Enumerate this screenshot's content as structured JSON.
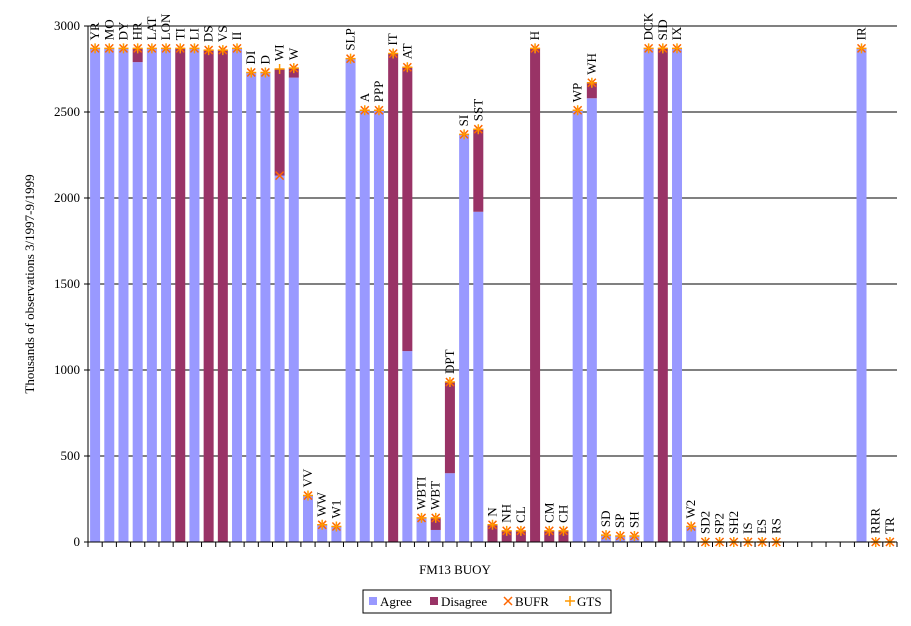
{
  "chart_data": {
    "type": "stacked_bar",
    "y_axis_label": "Thousands of observations 3/1997-9/1999",
    "x_axis_label": "FM13 BUOY",
    "categories": [
      "YR",
      "MO",
      "DY",
      "HR",
      "LAT",
      "LON",
      "TI",
      "LI",
      "DS",
      "VS",
      "II",
      "DI",
      "D",
      "WI",
      "W",
      "VV",
      "WW",
      "W1",
      "SLP",
      "A",
      "PPP",
      "IT",
      "AT",
      "WBTI",
      "WBT",
      "DPT",
      "SI",
      "SST",
      "N",
      "NH",
      "CL",
      "H",
      "CM",
      "CH",
      "WP",
      "WH",
      "SD",
      "SP",
      "SH",
      "DCK",
      "SID",
      "IX",
      "W2",
      "SD2",
      "SP2",
      "SH2",
      "IS",
      "ES",
      "RS",
      null,
      null,
      null,
      null,
      null,
      "IR",
      "RRR",
      "TR"
    ],
    "series": [
      {
        "name": "Agree",
        "color": "#9999ff",
        "kind": "bar",
        "values": [
          2870,
          2870,
          2870,
          2790,
          2870,
          2870,
          0,
          2870,
          0,
          0,
          2870,
          2730,
          2730,
          2130,
          2700,
          270,
          100,
          90,
          2810,
          2510,
          2510,
          0,
          1110,
          140,
          70,
          400,
          2370,
          1920,
          0,
          0,
          0,
          0,
          0,
          0,
          2510,
          2580,
          40,
          35,
          35,
          2870,
          0,
          2870,
          90,
          0,
          0,
          0,
          0,
          0,
          0,
          null,
          null,
          null,
          null,
          null,
          2870,
          0,
          0
        ]
      },
      {
        "name": "Disagree",
        "color": "#993366",
        "kind": "bar",
        "values": [
          0,
          0,
          0,
          80,
          0,
          0,
          2870,
          0,
          2860,
          2860,
          0,
          0,
          0,
          620,
          55,
          0,
          0,
          0,
          0,
          0,
          0,
          2840,
          1650,
          0,
          70,
          530,
          0,
          480,
          100,
          65,
          65,
          2870,
          65,
          65,
          0,
          90,
          0,
          0,
          0,
          0,
          2870,
          0,
          0,
          0,
          0,
          0,
          0,
          0,
          0,
          null,
          null,
          null,
          null,
          null,
          0,
          0,
          0
        ]
      },
      {
        "name": "BUFR",
        "color": "#ff6600",
        "kind": "x-marker",
        "values": [
          2870,
          2870,
          2870,
          2870,
          2870,
          2870,
          2870,
          2870,
          2860,
          2860,
          2870,
          2730,
          2730,
          2130,
          2755,
          270,
          100,
          90,
          2810,
          2510,
          2510,
          2840,
          2760,
          140,
          140,
          930,
          2370,
          2400,
          100,
          65,
          65,
          2870,
          65,
          65,
          2510,
          2670,
          40,
          35,
          35,
          2870,
          2870,
          2870,
          90,
          0,
          0,
          0,
          0,
          0,
          0,
          null,
          null,
          null,
          null,
          null,
          2870,
          0,
          0
        ]
      },
      {
        "name": "GTS",
        "color": "#ff9900",
        "kind": "plus-marker",
        "values": [
          2870,
          2870,
          2870,
          2870,
          2870,
          2870,
          2870,
          2870,
          2860,
          2860,
          2870,
          2730,
          2730,
          2750,
          2755,
          270,
          100,
          90,
          2810,
          2510,
          2510,
          2840,
          2760,
          140,
          140,
          930,
          2370,
          2400,
          100,
          65,
          65,
          2870,
          65,
          65,
          2510,
          2670,
          40,
          35,
          35,
          2870,
          2870,
          2870,
          90,
          0,
          0,
          0,
          0,
          0,
          0,
          null,
          null,
          null,
          null,
          null,
          2870,
          0,
          0
        ]
      }
    ],
    "ylim": [
      0,
      3000
    ],
    "yticks": [
      0,
      500,
      1000,
      1500,
      2000,
      2500,
      3000
    ],
    "grid": true,
    "legend": "bottom"
  }
}
